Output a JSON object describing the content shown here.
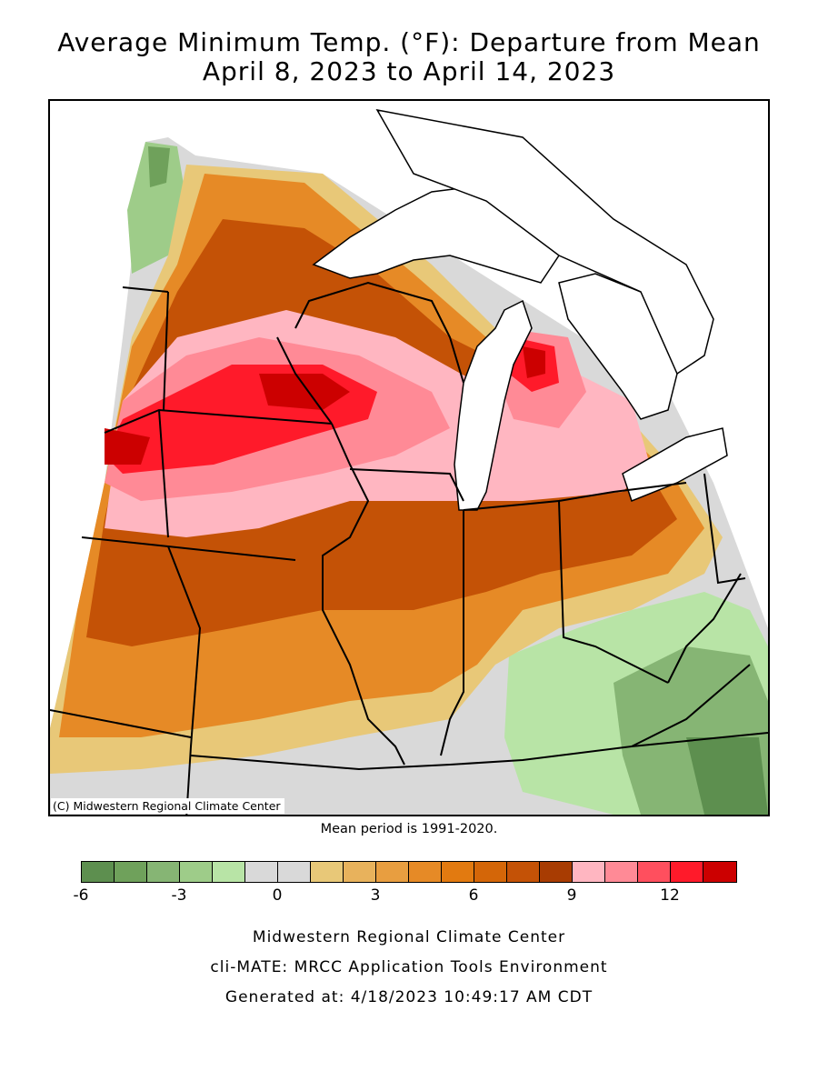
{
  "title_line1": "Average Minimum Temp. (°F): Departure from Mean",
  "title_line2": "April 8, 2023 to April 14, 2023",
  "credit": "(C) Midwestern Regional Climate Center",
  "mean_period": "Mean period is 1991-2020.",
  "legend": {
    "colors": [
      "#5d8f4f",
      "#6fa15b",
      "#86b574",
      "#9ecc89",
      "#b8e4a6",
      "#d9d9d9",
      "#d9d9d9",
      "#e8c878",
      "#e8b25c",
      "#e89e40",
      "#e68a26",
      "#e27a10",
      "#d46608",
      "#c45206",
      "#a83c02",
      "#ffb6c1",
      "#ff8a96",
      "#ff4f5e",
      "#ff1a2a",
      "#cc0000"
    ],
    "tick_labels": [
      "-6",
      "-3",
      "0",
      "3",
      "6",
      "9",
      "12"
    ]
  },
  "footer": {
    "line1": "Midwestern Regional Climate Center",
    "line2": "cli-MATE: MRCC Application Tools Environment",
    "line3": "Generated at: 4/18/2023 10:49:17 AM CDT"
  }
}
